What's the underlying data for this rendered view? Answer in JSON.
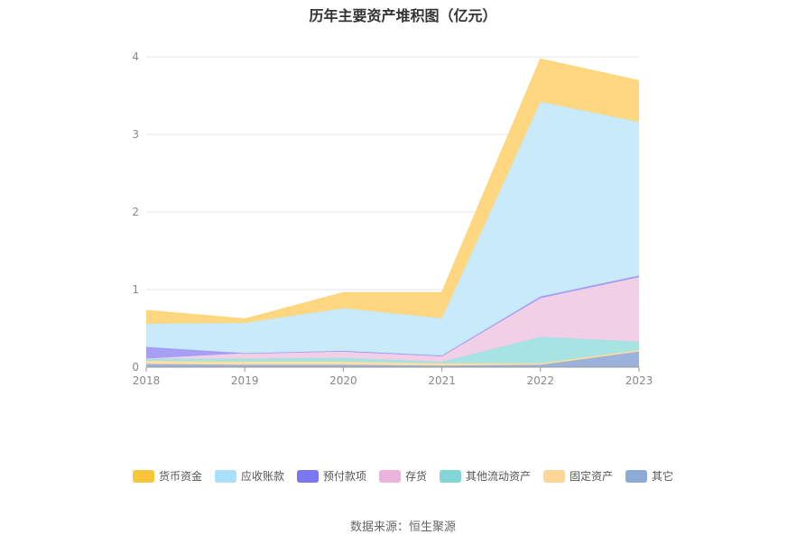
{
  "chart_data": {
    "type": "area",
    "stacked": true,
    "title": "历年主要资产堆积图（亿元）",
    "x": [
      "2018",
      "2019",
      "2020",
      "2021",
      "2022",
      "2023"
    ],
    "ylim": [
      0,
      4
    ],
    "yticks": [
      0,
      1,
      2,
      3,
      4
    ],
    "grid": true,
    "legend_position": "bottom",
    "series": [
      {
        "name": "其它",
        "color": "#96afd9",
        "values": [
          0.04,
          0.03,
          0.03,
          0.02,
          0.03,
          0.2
        ]
      },
      {
        "name": "固定资产",
        "color": "#ffdd9e",
        "values": [
          0.04,
          0.04,
          0.04,
          0.03,
          0.02,
          0.02
        ]
      },
      {
        "name": "其他流动资产",
        "color": "#a3e1e1",
        "values": [
          0.03,
          0.04,
          0.05,
          0.02,
          0.34,
          0.11
        ]
      },
      {
        "name": "存货",
        "color": "#f0cde6",
        "values": [
          0.0,
          0.07,
          0.08,
          0.07,
          0.5,
          0.83
        ]
      },
      {
        "name": "预付款项",
        "color": "#a19af2",
        "values": [
          0.15,
          0.0,
          0.01,
          0.01,
          0.02,
          0.02
        ]
      },
      {
        "name": "应收账款",
        "color": "#c5e9fa",
        "values": [
          0.3,
          0.39,
          0.55,
          0.48,
          2.51,
          1.98
        ]
      },
      {
        "name": "货币资金",
        "color": "#ffd57a",
        "values": [
          0.17,
          0.05,
          0.2,
          0.33,
          0.55,
          0.53
        ]
      }
    ],
    "legend": [
      {
        "name": "货币资金",
        "color": "#f8c53b"
      },
      {
        "name": "应收账款",
        "color": "#a8e0f9"
      },
      {
        "name": "预付款项",
        "color": "#7a78f0"
      },
      {
        "name": "存货",
        "color": "#ecb4dc"
      },
      {
        "name": "其他流动资产",
        "color": "#82d6d6"
      },
      {
        "name": "固定资产",
        "color": "#ffd69a"
      },
      {
        "name": "其它",
        "color": "#8dabd9"
      }
    ]
  },
  "source": "数据来源：恒生聚源"
}
